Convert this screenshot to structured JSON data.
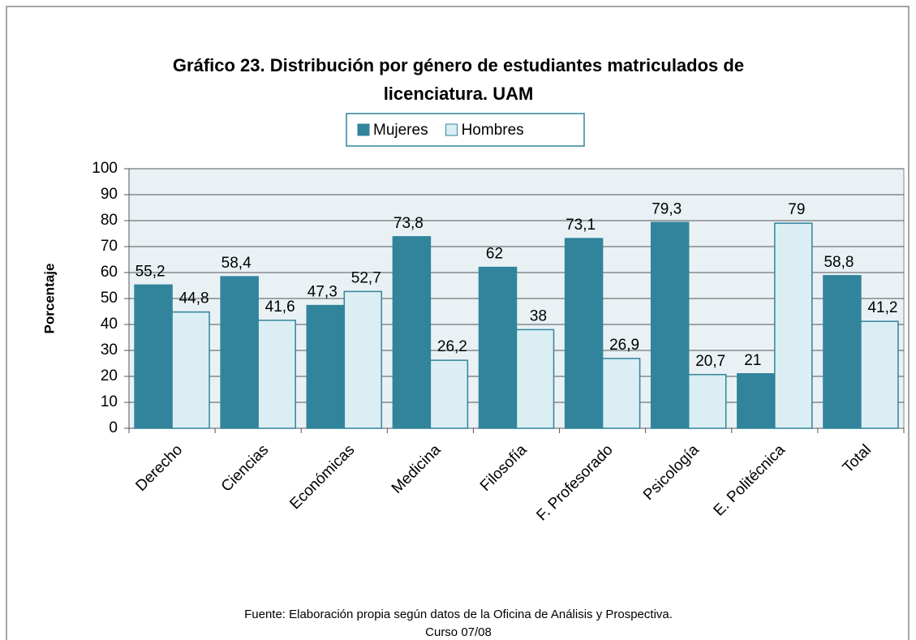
{
  "chart_data": {
    "type": "bar",
    "title": [
      "Gráfico 23. Distribución por género de estudiantes matriculados de",
      "licenciatura. UAM"
    ],
    "y_label": "Porcentaje",
    "source": [
      "Fuente: Elaboración propia según datos de la Oficina de Análisis y Prospectiva.",
      "Curso 07/08"
    ],
    "categories": [
      "Derecho",
      "Ciencias",
      "Económicas",
      "Medicina",
      "Filosofía",
      "F. Profesorado",
      "Psicología",
      "E. Politécnica",
      "Total"
    ],
    "series": [
      {
        "name": "Mujeres",
        "color": "#31849b",
        "values": [
          55.2,
          58.4,
          47.3,
          73.8,
          62,
          73.1,
          79.3,
          21,
          58.8
        ],
        "value_labels": [
          "55,2",
          "58,4",
          "47,3",
          "73,8",
          "62",
          "73,1",
          "79,3",
          "21",
          "58,8"
        ]
      },
      {
        "name": "Hombres",
        "color": "#dbeef3",
        "values": [
          44.8,
          41.6,
          52.7,
          26.2,
          38,
          26.9,
          20.7,
          79,
          41.2
        ],
        "value_labels": [
          "44,8",
          "41,6",
          "52,7",
          "26,2",
          "38",
          "26,9",
          "20,7",
          "79",
          "41,2"
        ]
      }
    ],
    "ylim": [
      0,
      100
    ],
    "yticks": [
      0,
      10,
      20,
      30,
      40,
      50,
      60,
      70,
      80,
      90,
      100
    ],
    "grid": true,
    "legend": "top"
  }
}
